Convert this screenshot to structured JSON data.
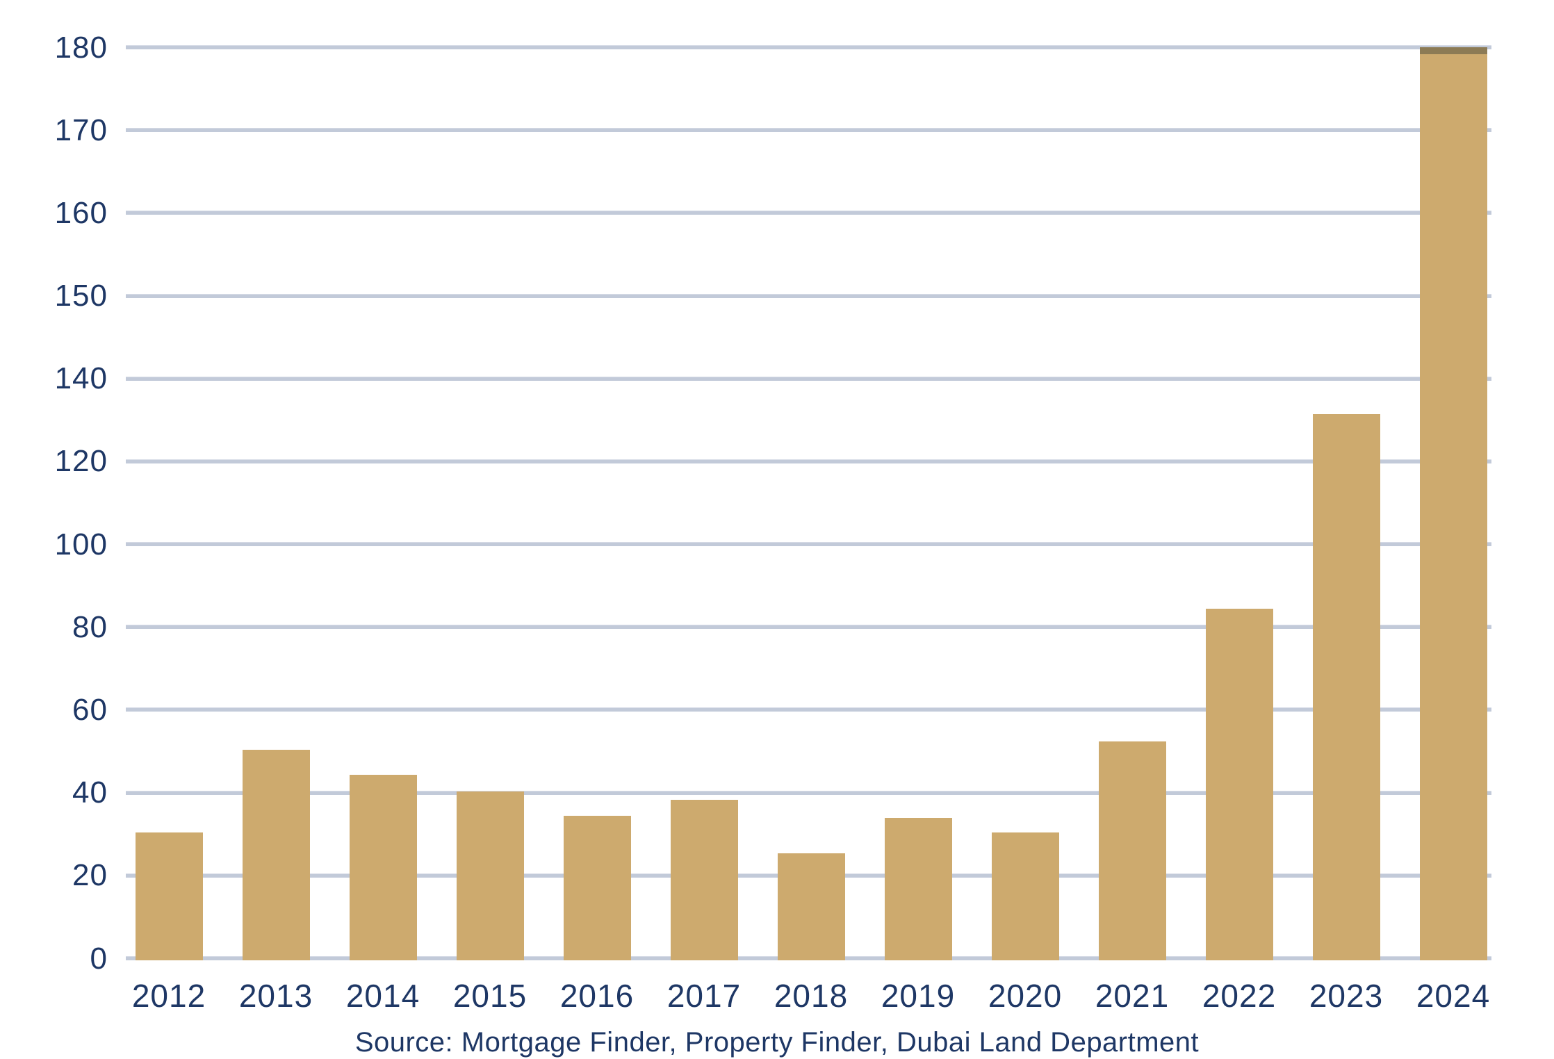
{
  "chart_data": {
    "type": "bar",
    "categories": [
      "2012",
      "2013",
      "2014",
      "2015",
      "2016",
      "2017",
      "2018",
      "2019",
      "2020",
      "2021",
      "2022",
      "2023",
      "2024"
    ],
    "values": [
      30,
      50,
      44,
      40,
      34,
      38,
      25,
      33.5,
      30,
      52,
      84,
      131,
      180
    ],
    "title": "",
    "xlabel": "",
    "ylabel": "",
    "y_axis_ticks": [
      0,
      20,
      40,
      60,
      80,
      100,
      120,
      140,
      150,
      160,
      170,
      180
    ],
    "y_axis_scale_note": "gridlines evenly spaced; steps of 20 from 0 to 140, then steps of 10 from 140 to 180",
    "ylim": [
      0,
      180
    ],
    "grid": true,
    "legend": false,
    "source": "Source: Mortgage Finder, Property Finder, Dubai Land Department",
    "colors": {
      "bar": "#cdaa6e",
      "bar_top_overlay": "#8c7b55",
      "gridline": "#c2cad9",
      "text": "#1e3765",
      "background": "#ffffff"
    }
  }
}
